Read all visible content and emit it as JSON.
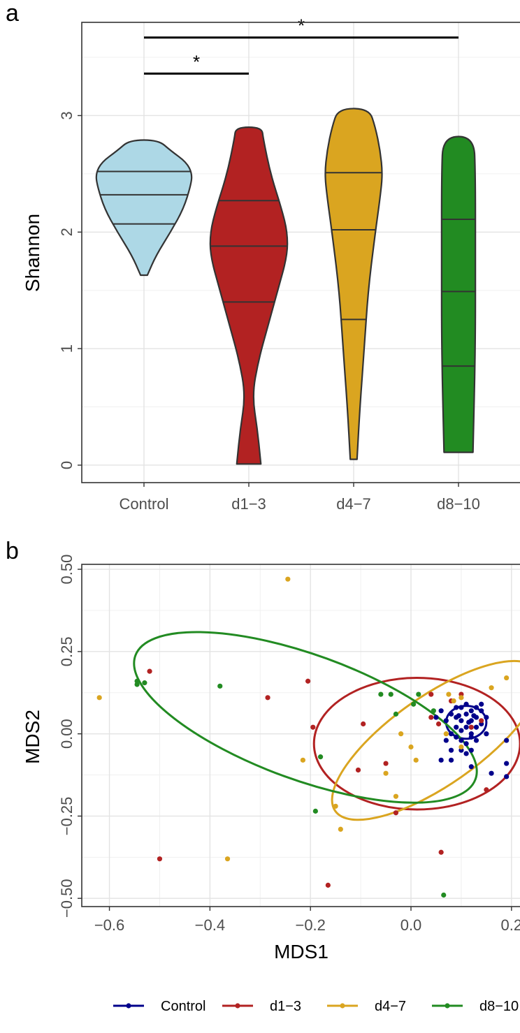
{
  "figure": {
    "panel_a_label": "a",
    "panel_b_label": "b"
  },
  "chart_data": [
    {
      "type": "violin",
      "panel": "a",
      "ylabel": "Shannon",
      "xlabel": "",
      "ylim": [
        -0.15,
        3.8
      ],
      "y_ticks": [
        "0",
        "1",
        "2",
        "3"
      ],
      "grid": true,
      "categories": [
        "Control",
        "d1−3",
        "d4−7",
        "d8−10"
      ],
      "colors": [
        "#add8e6",
        "#b22222",
        "#daa520",
        "#228b22"
      ],
      "violins": [
        {
          "name": "Control",
          "min": 1.63,
          "max": 2.79,
          "quantiles": [
            2.07,
            2.32,
            2.52
          ],
          "profile": [
            [
              1.63,
              0.07
            ],
            [
              1.8,
              0.25
            ],
            [
              2.0,
              0.55
            ],
            [
              2.2,
              0.82
            ],
            [
              2.4,
              0.97
            ],
            [
              2.5,
              1.0
            ],
            [
              2.6,
              0.88
            ],
            [
              2.7,
              0.55
            ],
            [
              2.79,
              0.3
            ]
          ]
        },
        {
          "name": "d1−3",
          "min": 0.01,
          "max": 2.9,
          "quantiles": [
            1.4,
            1.88,
            2.27
          ],
          "profile": [
            [
              0.01,
              0.25
            ],
            [
              0.3,
              0.18
            ],
            [
              0.6,
              0.07
            ],
            [
              0.9,
              0.2
            ],
            [
              1.2,
              0.4
            ],
            [
              1.5,
              0.6
            ],
            [
              1.8,
              0.8
            ],
            [
              2.0,
              0.8
            ],
            [
              2.2,
              0.68
            ],
            [
              2.5,
              0.45
            ],
            [
              2.8,
              0.3
            ],
            [
              2.9,
              0.27
            ]
          ]
        },
        {
          "name": "d4−7",
          "min": 0.05,
          "max": 3.06,
          "quantiles": [
            1.25,
            2.02,
            2.51
          ],
          "profile": [
            [
              0.05,
              0.07
            ],
            [
              0.5,
              0.13
            ],
            [
              1.0,
              0.22
            ],
            [
              1.5,
              0.3
            ],
            [
              2.0,
              0.45
            ],
            [
              2.3,
              0.55
            ],
            [
              2.5,
              0.6
            ],
            [
              2.7,
              0.55
            ],
            [
              2.9,
              0.45
            ],
            [
              3.06,
              0.32
            ]
          ]
        },
        {
          "name": "d8−10",
          "min": 0.11,
          "max": 2.82,
          "quantiles": [
            0.85,
            1.49,
            2.11
          ],
          "profile": [
            [
              0.11,
              0.3
            ],
            [
              1.0,
              0.35
            ],
            [
              1.8,
              0.35
            ],
            [
              2.5,
              0.35
            ],
            [
              2.82,
              0.32
            ]
          ]
        }
      ],
      "annotations": [
        {
          "from": "Control",
          "to": "d1−3",
          "y": 3.36,
          "label": "*"
        },
        {
          "from": "Control",
          "to": "d8−10",
          "y": 3.67,
          "label": "*"
        }
      ]
    },
    {
      "type": "scatter",
      "panel": "b",
      "xlabel": "MDS1",
      "ylabel": "MDS2",
      "xlim": [
        -0.655,
        0.235
      ],
      "ylim": [
        -0.525,
        0.515
      ],
      "x_ticks": [
        "−0.6",
        "−0.4",
        "−0.2",
        "0.0",
        "0.2"
      ],
      "y_ticks": [
        "−0.50",
        "−0.25",
        "0.00",
        "0.25",
        "0.50"
      ],
      "grid": true,
      "legend_position": "bottom",
      "series": [
        {
          "name": "Control",
          "color": "#00008b",
          "points": [
            [
              0.06,
              0.07
            ],
            [
              0.07,
              0.04
            ],
            [
              0.08,
              0.06
            ],
            [
              0.09,
              0.05
            ],
            [
              0.1,
              0.08
            ],
            [
              0.11,
              0.06
            ],
            [
              0.12,
              0.04
            ],
            [
              0.13,
              0.05
            ],
            [
              0.14,
              0.07
            ],
            [
              0.09,
              0.02
            ],
            [
              0.1,
              0.01
            ],
            [
              0.11,
              0.02
            ],
            [
              0.12,
              0.0
            ],
            [
              0.13,
              0.02
            ],
            [
              0.14,
              0.03
            ],
            [
              0.08,
              0.0
            ],
            [
              0.09,
              -0.01
            ],
            [
              0.1,
              -0.02
            ],
            [
              0.11,
              -0.03
            ],
            [
              0.12,
              -0.01
            ],
            [
              0.13,
              -0.02
            ],
            [
              0.07,
              -0.02
            ],
            [
              0.08,
              -0.05
            ],
            [
              0.1,
              -0.05
            ],
            [
              0.11,
              -0.06
            ],
            [
              0.12,
              -0.05
            ],
            [
              0.13,
              0.08
            ],
            [
              0.15,
              0.05
            ],
            [
              0.06,
              -0.08
            ],
            [
              0.08,
              -0.08
            ],
            [
              0.19,
              -0.02
            ],
            [
              0.19,
              -0.09
            ],
            [
              0.19,
              -0.13
            ],
            [
              0.16,
              -0.12
            ],
            [
              0.12,
              -0.1
            ],
            [
              0.09,
              0.08
            ],
            [
              0.11,
              0.09
            ],
            [
              0.14,
              0.09
            ],
            [
              0.05,
              0.05
            ],
            [
              0.12,
              0.07
            ],
            [
              0.15,
              0.0
            ],
            [
              0.1,
              0.04
            ],
            [
              0.115,
              0.035
            ],
            [
              0.125,
              0.055
            ],
            [
              0.095,
              0.055
            ]
          ]
        },
        {
          "name": "d1−3",
          "color": "#b22222",
          "points": [
            [
              -0.52,
              0.19
            ],
            [
              -0.5,
              -0.38
            ],
            [
              -0.285,
              0.11
            ],
            [
              -0.205,
              0.16
            ],
            [
              -0.195,
              0.02
            ],
            [
              -0.165,
              -0.46
            ],
            [
              -0.105,
              -0.11
            ],
            [
              -0.095,
              0.03
            ],
            [
              -0.05,
              -0.09
            ],
            [
              -0.03,
              -0.24
            ],
            [
              0.04,
              0.12
            ],
            [
              0.04,
              0.05
            ],
            [
              0.055,
              0.03
            ],
            [
              0.06,
              -0.36
            ],
            [
              0.08,
              0.1
            ],
            [
              0.14,
              0.04
            ],
            [
              0.15,
              -0.17
            ],
            [
              0.12,
              0.02
            ],
            [
              0.1,
              0.12
            ]
          ]
        },
        {
          "name": "d4−7",
          "color": "#daa520",
          "points": [
            [
              -0.62,
              0.11
            ],
            [
              -0.365,
              -0.38
            ],
            [
              -0.245,
              0.47
            ],
            [
              -0.215,
              -0.08
            ],
            [
              -0.15,
              -0.22
            ],
            [
              -0.14,
              -0.29
            ],
            [
              -0.05,
              -0.12
            ],
            [
              -0.02,
              0.0
            ],
            [
              -0.03,
              -0.19
            ],
            [
              0.0,
              -0.04
            ],
            [
              0.01,
              -0.08
            ],
            [
              0.07,
              0.0
            ],
            [
              0.075,
              0.12
            ],
            [
              0.085,
              0.1
            ],
            [
              0.1,
              0.11
            ],
            [
              0.1,
              -0.04
            ],
            [
              0.16,
              0.14
            ],
            [
              0.19,
              0.17
            ]
          ]
        },
        {
          "name": "d8−10",
          "color": "#228b22",
          "points": [
            [
              -0.545,
              0.16
            ],
            [
              -0.545,
              0.15
            ],
            [
              -0.53,
              0.155
            ],
            [
              -0.38,
              0.145
            ],
            [
              -0.19,
              -0.235
            ],
            [
              -0.18,
              -0.07
            ],
            [
              -0.06,
              0.12
            ],
            [
              -0.03,
              0.06
            ],
            [
              -0.04,
              0.12
            ],
            [
              0.005,
              0.09
            ],
            [
              0.015,
              0.12
            ],
            [
              0.045,
              0.07
            ],
            [
              0.065,
              -0.49
            ]
          ]
        }
      ],
      "ellipses": [
        {
          "series": "Control",
          "center": [
            0.11,
            0.035
          ],
          "radii": [
            0.04,
            0.05
          ],
          "angle": 0
        },
        {
          "series": "d1−3",
          "center": [
            0.012,
            -0.03
          ],
          "radii": [
            0.205,
            0.2
          ],
          "angle": 0
        },
        {
          "series": "d4−7",
          "center": [
            0.05,
            -0.02
          ],
          "radii": [
            0.245,
            0.135
          ],
          "angle": 35
        },
        {
          "series": "d8−10",
          "center": [
            -0.21,
            0.05
          ],
          "radii": [
            0.36,
            0.19
          ],
          "angle": -20
        }
      ]
    }
  ]
}
